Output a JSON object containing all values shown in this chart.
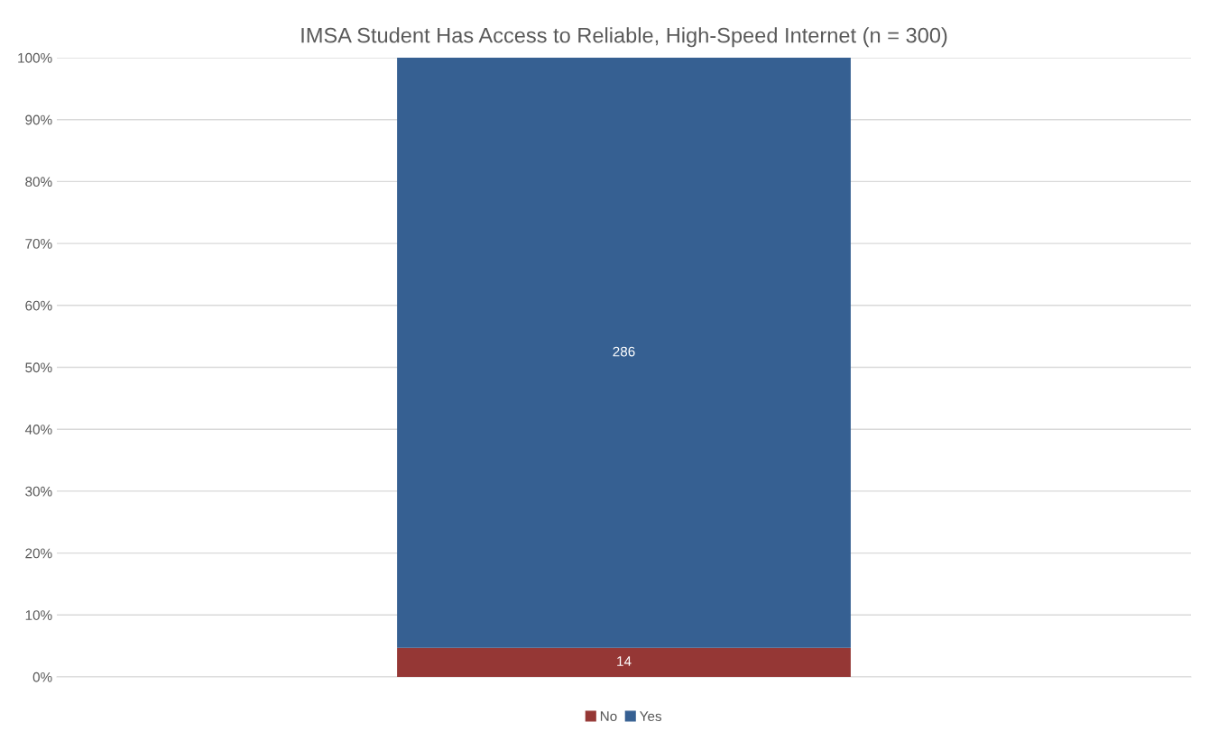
{
  "chart_data": {
    "type": "bar",
    "title": "IMSA Student Has Access to Reliable, High-Speed Internet (n = 300)",
    "categories": [
      null
    ],
    "stacked": true,
    "series": [
      {
        "name": "No",
        "color": "#953735",
        "values": [
          4.7
        ]
      },
      {
        "name": "Yes",
        "color": "#366092",
        "values": [
          95.3
        ]
      }
    ],
    "annotations": [
      "14",
      "286"
    ],
    "ylim": [
      0,
      100
    ],
    "yticks": [
      {
        "value": 0,
        "label": "0%"
      },
      {
        "value": 10,
        "label": "10%"
      },
      {
        "value": 20,
        "label": "20%"
      },
      {
        "value": 30,
        "label": "30%"
      },
      {
        "value": 40,
        "label": "40%"
      },
      {
        "value": 50,
        "label": "50%"
      },
      {
        "value": 60,
        "label": "60%"
      },
      {
        "value": 70,
        "label": "70%"
      },
      {
        "value": 80,
        "label": "80%"
      },
      {
        "value": 90,
        "label": "90%"
      },
      {
        "value": 100,
        "label": "100%"
      }
    ],
    "grid": "y",
    "legend": "bottom"
  }
}
